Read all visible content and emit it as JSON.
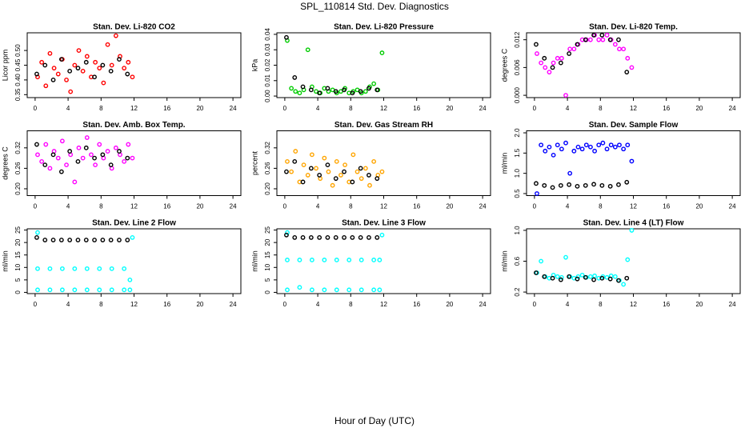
{
  "page_title": "SPL_110814  Std. Dev. Diagnostics",
  "x_axis_label": "Hour of Day (UTC)",
  "chart_data": [
    {
      "type": "scatter",
      "title": "Stan. Dev. Li-820 CO2",
      "y_label": "Licor ppm",
      "xlim": [
        -0.96,
        24.96
      ],
      "xticks": [
        0,
        4,
        8,
        12,
        16,
        20,
        24
      ],
      "ylim": [
        0.34,
        0.56
      ],
      "yticks": [
        {
          "value": 0.35,
          "label": "0.35"
        },
        {
          "value": 0.4,
          "label": "0.40"
        },
        {
          "value": 0.45,
          "label": "0.45"
        },
        {
          "value": 0.5,
          "label": "0.50"
        }
      ],
      "series": [
        {
          "color": "#ff0000",
          "x": [
            0.3,
            0.8,
            1.3,
            1.8,
            2.3,
            2.8,
            3.3,
            3.8,
            4.3,
            4.8,
            5.3,
            5.8,
            6.3,
            6.8,
            7.3,
            7.8,
            8.3,
            8.8,
            9.3,
            9.8,
            10.3,
            10.8,
            11.3,
            11.8
          ],
          "values": [
            0.41,
            0.46,
            0.38,
            0.49,
            0.44,
            0.42,
            0.47,
            0.4,
            0.36,
            0.45,
            0.5,
            0.43,
            0.48,
            0.41,
            0.46,
            0.44,
            0.39,
            0.52,
            0.45,
            0.55,
            0.48,
            0.44,
            0.46,
            0.41
          ]
        },
        {
          "color": "#000000",
          "x": [
            0.2,
            1.2,
            2.2,
            3.2,
            4.2,
            5.2,
            6.2,
            7.2,
            8.2,
            9.2,
            10.2,
            11.2
          ],
          "values": [
            0.42,
            0.45,
            0.4,
            0.47,
            0.43,
            0.44,
            0.46,
            0.41,
            0.45,
            0.43,
            0.47,
            0.42
          ]
        }
      ]
    },
    {
      "type": "scatter",
      "title": "Stan. Dev. Li-820 Pressure",
      "y_label": "kPa",
      "xlim": [
        -0.96,
        24.96
      ],
      "xticks": [
        0,
        4,
        8,
        12,
        16,
        20,
        24
      ],
      "ylim": [
        -0.001,
        0.041
      ],
      "yticks": [
        {
          "value": 0,
          "label": "0.00"
        },
        {
          "value": 0.01,
          "label": "0.01"
        },
        {
          "value": 0.02,
          "label": "0.02"
        },
        {
          "value": 0.03,
          "label": "0.03"
        },
        {
          "value": 0.04,
          "label": "0.04"
        }
      ],
      "series": [
        {
          "color": "#00cc00",
          "x": [
            0.3,
            0.8,
            1.3,
            1.8,
            2.3,
            2.8,
            3.3,
            3.8,
            4.3,
            4.8,
            5.3,
            5.8,
            6.3,
            6.8,
            7.3,
            7.8,
            8.3,
            8.8,
            9.3,
            9.8,
            10.3,
            10.8,
            11.3,
            11.8
          ],
          "values": [
            0.036,
            0.005,
            0.003,
            0.002,
            0.004,
            0.03,
            0.006,
            0.003,
            0.002,
            0.005,
            0.003,
            0.004,
            0.002,
            0.003,
            0.005,
            0.002,
            0.003,
            0.004,
            0.002,
            0.003,
            0.006,
            0.008,
            0.004,
            0.028
          ]
        },
        {
          "color": "#000000",
          "x": [
            0.2,
            1.2,
            2.2,
            3.2,
            4.2,
            5.2,
            6.2,
            7.2,
            8.2,
            9.2,
            10.2,
            11.2
          ],
          "values": [
            0.038,
            0.012,
            0.006,
            0.004,
            0.002,
            0.005,
            0.003,
            0.004,
            0.002,
            0.003,
            0.005,
            0.004
          ]
        }
      ]
    },
    {
      "type": "scatter",
      "title": "Stan. Dev. Li-820 Temp.",
      "y_label": "degrees C",
      "xlim": [
        -0.96,
        24.96
      ],
      "xticks": [
        0,
        4,
        8,
        12,
        16,
        20,
        24
      ],
      "ylim": [
        -0.0005,
        0.0135
      ],
      "yticks": [
        {
          "value": 0,
          "label": "0.000"
        },
        {
          "value": 0.006,
          "label": "0.006"
        },
        {
          "value": 0.012,
          "label": "0.012"
        }
      ],
      "series": [
        {
          "color": "#ff00ff",
          "x": [
            0.3,
            0.8,
            1.3,
            1.8,
            2.3,
            2.8,
            3.3,
            3.8,
            4.3,
            4.8,
            5.3,
            5.8,
            6.3,
            6.8,
            7.3,
            7.8,
            8.3,
            8.8,
            9.3,
            9.8,
            10.3,
            10.8,
            11.3,
            11.8
          ],
          "values": [
            0.009,
            0.007,
            0.006,
            0.005,
            0.007,
            0.008,
            0.008,
            0,
            0.01,
            0.01,
            0.011,
            0.012,
            0.012,
            0.012,
            0.013,
            0.012,
            0.012,
            0.013,
            0.012,
            0.011,
            0.01,
            0.01,
            0.008,
            0.006
          ]
        },
        {
          "color": "#000000",
          "x": [
            0.2,
            1.2,
            2.2,
            3.2,
            4.2,
            5.2,
            6.2,
            7.2,
            8.2,
            9.2,
            10.2,
            11.2
          ],
          "values": [
            0.011,
            0.008,
            0.006,
            0.007,
            0.009,
            0.011,
            0.012,
            0.013,
            0.013,
            0.012,
            0.012,
            0.005
          ]
        }
      ]
    },
    {
      "type": "scatter",
      "title": "Stan. Dev. Amb. Box Temp.",
      "y_label": "degrees C",
      "xlim": [
        -0.96,
        24.96
      ],
      "xticks": [
        0,
        4,
        8,
        12,
        16,
        20,
        24
      ],
      "ylim": [
        0.18,
        0.37
      ],
      "yticks": [
        {
          "value": 0.2,
          "label": "0.20"
        },
        {
          "value": 0.26,
          "label": "0.26"
        },
        {
          "value": 0.32,
          "label": "0.32"
        }
      ],
      "series": [
        {
          "color": "#ff00ff",
          "x": [
            0.3,
            0.8,
            1.3,
            1.8,
            2.3,
            2.8,
            3.3,
            3.8,
            4.3,
            4.8,
            5.3,
            5.8,
            6.3,
            6.8,
            7.3,
            7.8,
            8.3,
            8.8,
            9.3,
            9.8,
            10.3,
            10.8,
            11.3,
            11.8
          ],
          "values": [
            0.3,
            0.28,
            0.33,
            0.26,
            0.31,
            0.29,
            0.34,
            0.27,
            0.3,
            0.22,
            0.32,
            0.29,
            0.35,
            0.3,
            0.27,
            0.33,
            0.29,
            0.31,
            0.26,
            0.32,
            0.3,
            0.28,
            0.33,
            0.29
          ]
        },
        {
          "color": "#000000",
          "x": [
            0.2,
            1.2,
            2.2,
            3.2,
            4.2,
            5.2,
            6.2,
            7.2,
            8.2,
            9.2,
            10.2,
            11.2
          ],
          "values": [
            0.33,
            0.27,
            0.3,
            0.25,
            0.31,
            0.28,
            0.32,
            0.29,
            0.3,
            0.27,
            0.31,
            0.29
          ]
        }
      ]
    },
    {
      "type": "scatter",
      "title": "Stan. Dev. Gas Stream RH",
      "y_label": "percent",
      "xlim": [
        -0.96,
        24.96
      ],
      "xticks": [
        0,
        4,
        8,
        12,
        16,
        20,
        24
      ],
      "ylim": [
        0.18,
        0.37
      ],
      "yticks": [
        {
          "value": 0.2,
          "label": "0.20"
        },
        {
          "value": 0.26,
          "label": "0.26"
        },
        {
          "value": 0.32,
          "label": "0.32"
        }
      ],
      "series": [
        {
          "color": "#ffa500",
          "x": [
            0.3,
            0.8,
            1.3,
            1.8,
            2.3,
            2.8,
            3.3,
            3.8,
            4.3,
            4.8,
            5.3,
            5.8,
            6.3,
            6.8,
            7.3,
            7.8,
            8.3,
            8.8,
            9.3,
            9.8,
            10.3,
            10.8,
            11.3,
            11.8
          ],
          "values": [
            0.28,
            0.25,
            0.31,
            0.22,
            0.27,
            0.24,
            0.3,
            0.26,
            0.23,
            0.29,
            0.25,
            0.21,
            0.28,
            0.24,
            0.27,
            0.22,
            0.3,
            0.25,
            0.23,
            0.26,
            0.21,
            0.28,
            0.24,
            0.25
          ]
        },
        {
          "color": "#000000",
          "x": [
            0.2,
            1.2,
            2.2,
            3.2,
            4.2,
            5.2,
            6.2,
            7.2,
            8.2,
            9.2,
            10.2,
            11.2
          ],
          "values": [
            0.25,
            0.28,
            0.22,
            0.26,
            0.24,
            0.27,
            0.23,
            0.25,
            0.22,
            0.26,
            0.24,
            0.23
          ]
        }
      ]
    },
    {
      "type": "scatter",
      "title": "Stan. Dev. Sample Flow",
      "y_label": "ml/min",
      "xlim": [
        -0.96,
        24.96
      ],
      "xticks": [
        0,
        4,
        8,
        12,
        16,
        20,
        24
      ],
      "ylim": [
        0.45,
        2.05
      ],
      "yticks": [
        0.5,
        {
          "value": 1,
          "label": "1.0"
        },
        1.5,
        {
          "value": 2,
          "label": "2.0"
        }
      ],
      "series": [
        {
          "color": "#0000ff",
          "x": [
            0.3,
            0.8,
            1.3,
            1.8,
            2.3,
            2.8,
            3.3,
            3.8,
            4.3,
            4.8,
            5.3,
            5.8,
            6.3,
            6.8,
            7.3,
            7.8,
            8.3,
            8.8,
            9.3,
            9.8,
            10.3,
            10.8,
            11.3,
            11.8
          ],
          "values": [
            0.5,
            1.7,
            1.55,
            1.65,
            1.45,
            1.7,
            1.6,
            1.75,
            1.0,
            1.55,
            1.65,
            1.6,
            1.7,
            1.65,
            1.55,
            1.7,
            1.75,
            1.6,
            1.7,
            1.65,
            1.7,
            1.6,
            1.7,
            1.3
          ]
        },
        {
          "color": "#000000",
          "x": [
            0.2,
            1.2,
            2.2,
            3.2,
            4.2,
            5.2,
            6.2,
            7.2,
            8.2,
            9.2,
            10.2,
            11.2
          ],
          "values": [
            0.75,
            0.7,
            0.65,
            0.7,
            0.72,
            0.68,
            0.7,
            0.73,
            0.7,
            0.68,
            0.72,
            0.78
          ]
        }
      ]
    },
    {
      "type": "scatter",
      "title": "Stan. Dev. Line 2 Flow",
      "y_label": "ml/min",
      "xlim": [
        -0.96,
        24.96
      ],
      "xticks": [
        0,
        4,
        8,
        12,
        16,
        20,
        24
      ],
      "ylim": [
        -0.5,
        25.5
      ],
      "yticks": [
        0,
        5,
        10,
        15,
        20,
        25
      ],
      "series": [
        {
          "color": "#00ffff",
          "x": [
            0.3,
            1.8,
            3.3,
            4.8,
            6.3,
            7.8,
            9.3,
            10.8,
            11.5,
            0.3,
            1.8,
            3.3,
            4.8,
            6.3,
            7.8,
            9.3,
            10.8,
            11.5,
            0.3,
            11.8
          ],
          "values": [
            1,
            1,
            1,
            1,
            1,
            1,
            1,
            1,
            1,
            9.5,
            9.5,
            9.5,
            9.5,
            9.5,
            9.5,
            9.5,
            9.5,
            5,
            24,
            22
          ]
        },
        {
          "color": "#000000",
          "x": [
            0.2,
            1.2,
            2.2,
            3.2,
            4.2,
            5.2,
            6.2,
            7.2,
            8.2,
            9.2,
            10.2,
            11.2
          ],
          "values": [
            22,
            21,
            21,
            21,
            21,
            21,
            21,
            21,
            21,
            21,
            21,
            21
          ]
        }
      ]
    },
    {
      "type": "scatter",
      "title": "Stan. Dev. Line 3 Flow",
      "y_label": "ml/min",
      "xlim": [
        -0.96,
        24.96
      ],
      "xticks": [
        0,
        4,
        8,
        12,
        16,
        20,
        24
      ],
      "ylim": [
        -0.5,
        25.5
      ],
      "yticks": [
        0,
        5,
        10,
        15,
        20,
        25
      ],
      "series": [
        {
          "color": "#00ffff",
          "x": [
            0.3,
            1.8,
            3.3,
            4.8,
            6.3,
            7.8,
            9.3,
            10.8,
            11.5,
            0.3,
            1.8,
            3.3,
            4.8,
            6.3,
            7.8,
            9.3,
            10.8,
            11.5,
            0.3,
            11.8
          ],
          "values": [
            1,
            2,
            1,
            1,
            1,
            1,
            1,
            1,
            1,
            13,
            13,
            13,
            13,
            13,
            13,
            13,
            13,
            13,
            24,
            23
          ]
        },
        {
          "color": "#000000",
          "x": [
            0.2,
            1.2,
            2.2,
            3.2,
            4.2,
            5.2,
            6.2,
            7.2,
            8.2,
            9.2,
            10.2,
            11.2
          ],
          "values": [
            23,
            22,
            22,
            22,
            22,
            22,
            22,
            22,
            22,
            22,
            22,
            22
          ]
        }
      ]
    },
    {
      "type": "scatter",
      "title": "Stan. Dev. Line 4 (LT) Flow",
      "y_label": "ml/min",
      "xlim": [
        -0.96,
        24.96
      ],
      "xticks": [
        0,
        4,
        8,
        12,
        16,
        20,
        24
      ],
      "ylim": [
        0.18,
        1.02
      ],
      "yticks": [
        0.2,
        0.6,
        {
          "value": 1,
          "label": "1.0"
        }
      ],
      "series": [
        {
          "color": "#00ffff",
          "x": [
            0.3,
            0.8,
            1.3,
            1.8,
            2.3,
            2.8,
            3.3,
            3.8,
            4.3,
            4.8,
            5.3,
            5.8,
            6.3,
            6.8,
            7.3,
            7.8,
            8.3,
            8.8,
            9.3,
            9.8,
            10.3,
            10.8,
            11.3,
            11.8
          ],
          "values": [
            0.45,
            0.6,
            0.4,
            0.38,
            0.42,
            0.4,
            0.39,
            0.65,
            0.4,
            0.38,
            0.4,
            0.42,
            0.39,
            0.4,
            0.41,
            0.38,
            0.4,
            0.39,
            0.41,
            0.4,
            0.35,
            0.3,
            0.62,
            1.0
          ]
        },
        {
          "color": "#000000",
          "x": [
            0.2,
            1.2,
            2.2,
            3.2,
            4.2,
            5.2,
            6.2,
            7.2,
            8.2,
            9.2,
            10.2,
            11.2
          ],
          "values": [
            0.45,
            0.4,
            0.38,
            0.36,
            0.4,
            0.37,
            0.39,
            0.36,
            0.38,
            0.37,
            0.35,
            0.38
          ]
        }
      ]
    }
  ]
}
